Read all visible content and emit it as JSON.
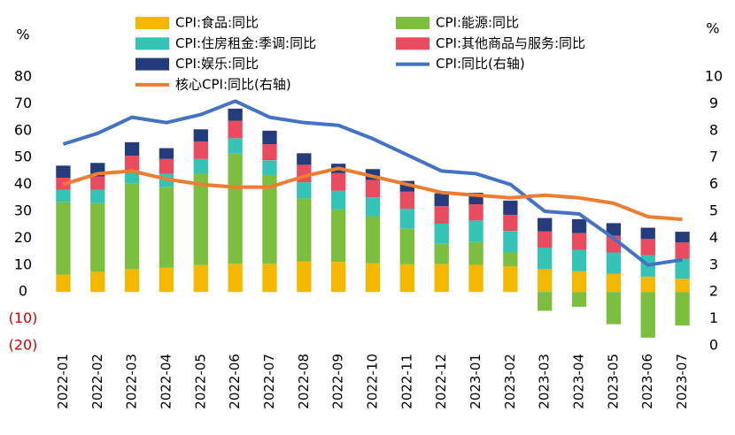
{
  "chart_data": {
    "type": "bar",
    "stacked": true,
    "y_unit": "%",
    "y2_unit": "%",
    "categories": [
      "2022-01",
      "2022-02",
      "2022-03",
      "2022-04",
      "2022-05",
      "2022-06",
      "2022-07",
      "2022-08",
      "2022-09",
      "2022-10",
      "2022-11",
      "2022-12",
      "2023-01",
      "2023-02",
      "2023-03",
      "2023-04",
      "2023-05",
      "2023-06",
      "2023-07"
    ],
    "ylim": [
      -20,
      80
    ],
    "yticks": [
      {
        "value": -20,
        "label": "(20)",
        "color": "#d40000"
      },
      {
        "value": -10,
        "label": "(10)",
        "color": "#d40000"
      },
      0,
      10,
      20,
      30,
      40,
      50,
      60,
      70,
      80
    ],
    "y2lim": [
      0,
      10
    ],
    "y2ticks": [
      0,
      1,
      2,
      3,
      4,
      5,
      6,
      7,
      8,
      9,
      10
    ],
    "series": [
      {
        "name": "CPI:食品:同比",
        "color": "#f5b800",
        "values": [
          6.5,
          7.5,
          8.5,
          9,
          10,
          10.5,
          10.5,
          11.3,
          11.2,
          10.7,
          10.3,
          10.4,
          10.1,
          9.5,
          8.5,
          7.7,
          6.7,
          5.7,
          4.9
        ]
      },
      {
        "name": "CPI:能源:同比",
        "color": "#7cbf3f",
        "values": [
          27,
          25.5,
          32,
          30,
          34,
          41,
          33,
          23.5,
          19.5,
          17.5,
          13.2,
          7.5,
          8.5,
          5.2,
          -7,
          -5.5,
          -12,
          -17,
          -12.5
        ]
      },
      {
        "name": "CPI:住房租金:季调:同比",
        "color": "#35c3b5",
        "values": [
          4.5,
          5,
          4.7,
          5,
          5.5,
          5.7,
          5.5,
          6,
          7,
          7,
          7.5,
          7.5,
          8,
          8,
          8,
          8,
          8,
          8,
          7.5
        ]
      },
      {
        "name": "CPI:其他商品与服务:同比",
        "color": "#e94b5f",
        "values": [
          4.5,
          5,
          5.5,
          5.5,
          6.5,
          6.5,
          6,
          6.5,
          6.5,
          6.5,
          6.3,
          6.5,
          6,
          6,
          6,
          6.2,
          6.2,
          6,
          6
        ]
      },
      {
        "name": "CPI:娱乐:同比",
        "color": "#243c7c",
        "values": [
          4.5,
          5,
          5,
          4,
          4.5,
          4.5,
          5,
          4.3,
          3.5,
          4,
          4,
          4.8,
          4.3,
          5.3,
          5,
          5.2,
          4.7,
          4.2,
          4
        ]
      },
      {
        "name": "CPI:同比(右轴)",
        "color": "#4472c4",
        "type": "line",
        "axis": "y2",
        "values": [
          7.5,
          7.9,
          8.5,
          8.3,
          8.6,
          9.1,
          8.5,
          8.3,
          8.2,
          7.7,
          7.1,
          6.5,
          6.4,
          6.0,
          5.0,
          4.9,
          4.0,
          3.0,
          3.2
        ]
      },
      {
        "name": "核心CPI:同比(右轴)",
        "color": "#ed7d31",
        "type": "line",
        "axis": "y2",
        "values": [
          6.0,
          6.4,
          6.5,
          6.2,
          6.0,
          5.9,
          5.9,
          6.3,
          6.6,
          6.3,
          6.0,
          5.7,
          5.6,
          5.5,
          5.6,
          5.5,
          5.3,
          4.8,
          4.7
        ]
      }
    ]
  }
}
